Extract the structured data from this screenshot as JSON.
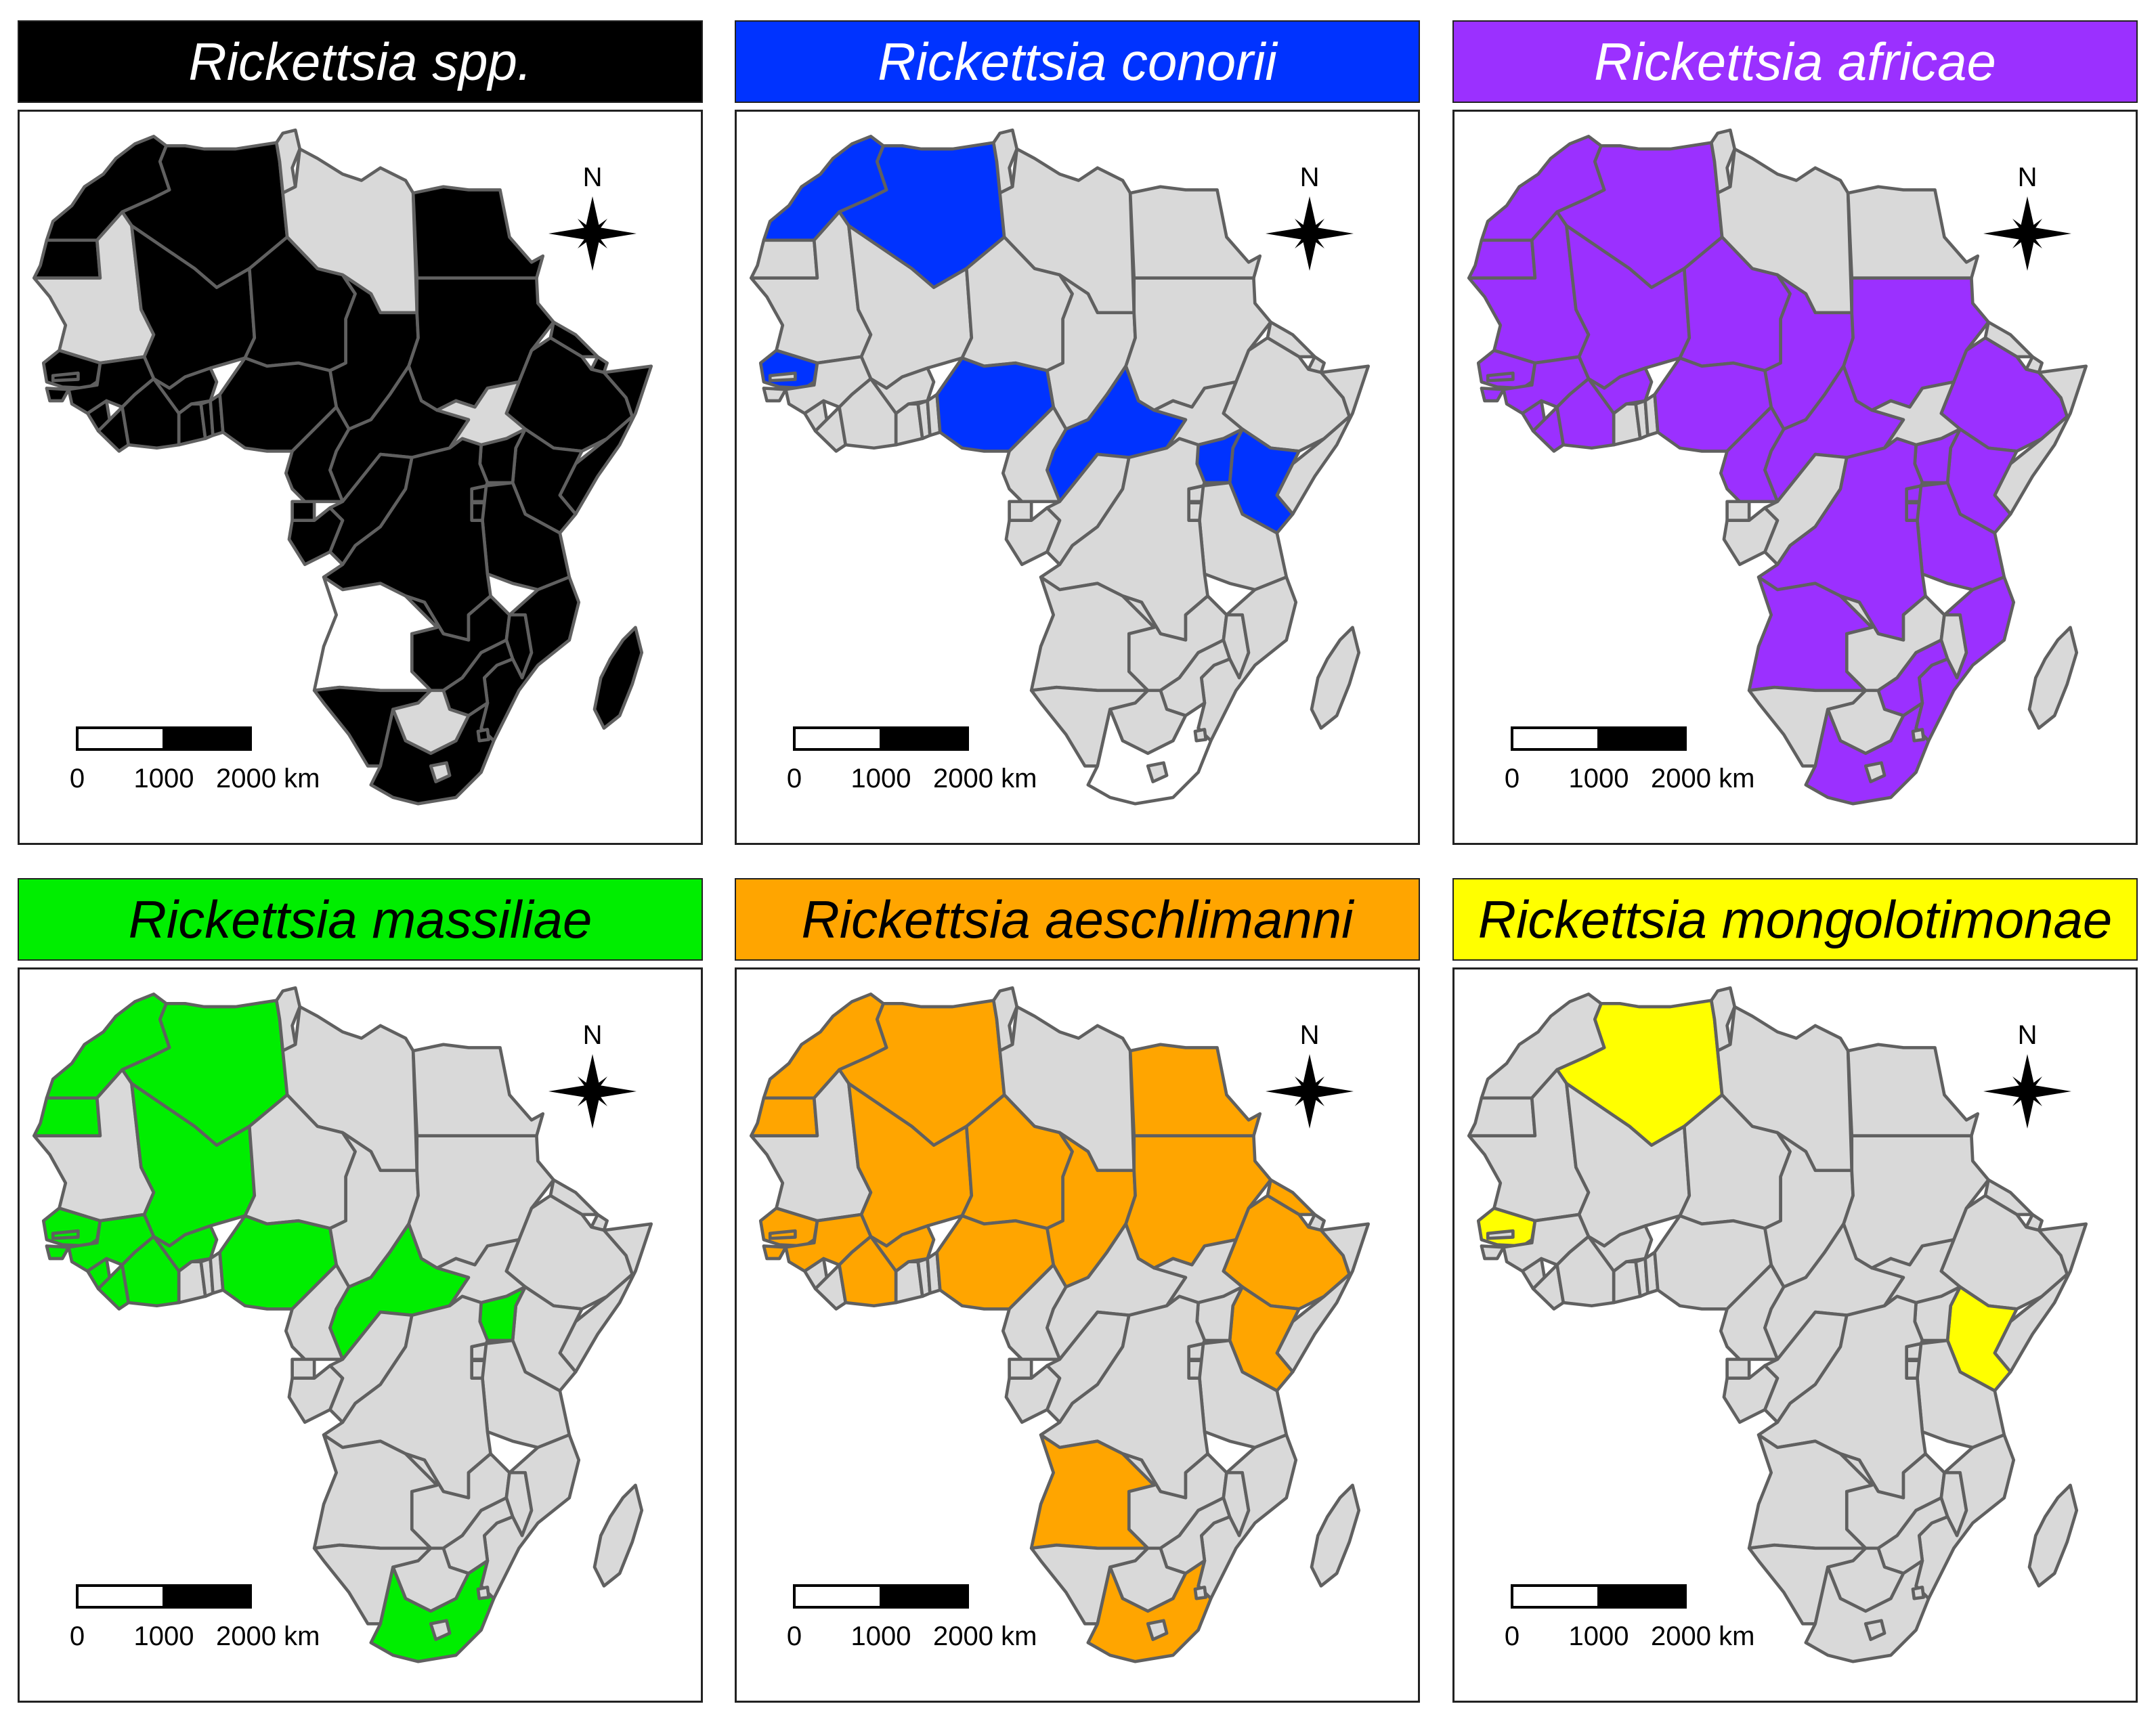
{
  "colors": {
    "default_fill": "#d9d9d9",
    "border": "#606060",
    "absent_fill": "#ffffff"
  },
  "scale_bar": {
    "labels": [
      "0",
      "1000",
      "2000 km"
    ]
  },
  "north_arrow": {
    "label": "N"
  },
  "panels": [
    {
      "title": "Rickettsia spp.",
      "title_color": "#ffffff",
      "banner_color": "#000000",
      "highlight_color": "#000000",
      "white_countries": [
        "angola"
      ]
    },
    {
      "title": "Rickettsia conorii",
      "title_color": "#ffffff",
      "banner_color": "#0033ff",
      "highlight_color": "#0033ff",
      "white_countries": [
        "south_africa"
      ]
    },
    {
      "title": "Rickettsia africae",
      "title_color": "#ffffff",
      "banner_color": "#9b30ff",
      "highlight_color": "#9b30ff",
      "white_countries": []
    },
    {
      "title": "Rickettsia massiliae",
      "title_color": "#000000",
      "banner_color": "#00ee00",
      "highlight_color": "#00ee00",
      "white_countries": []
    },
    {
      "title": "Rickettsia aeschlimanni",
      "title_color": "#000000",
      "banner_color": "#ffa500",
      "highlight_color": "#ffa500",
      "white_countries": []
    },
    {
      "title": "Rickettsia mongolotimonae",
      "title_color": "#000000",
      "banner_color": "#ffff00",
      "highlight_color": "#ffff00",
      "white_countries": []
    }
  ]
}
